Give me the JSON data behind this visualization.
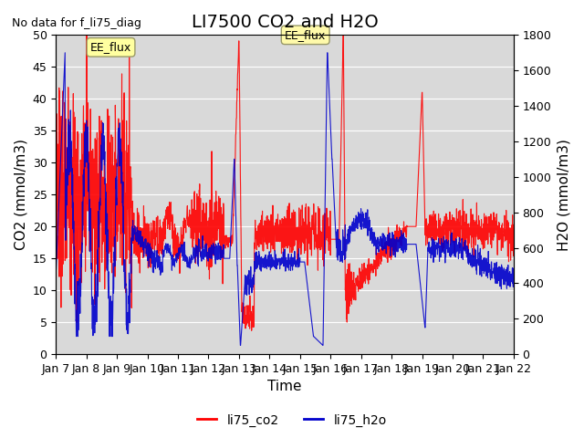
{
  "title": "LI7500 CO2 and H2O",
  "top_left_text": "No data for f_li75_diag",
  "xlabel": "Time",
  "ylabel_left": "CO2 (mmol/m3)",
  "ylabel_right": "H2O (mmol/m3)",
  "ylim_left": [
    0,
    50
  ],
  "ylim_right": [
    0,
    1800
  ],
  "yticks_left": [
    0,
    5,
    10,
    15,
    20,
    25,
    30,
    35,
    40,
    45,
    50
  ],
  "yticks_right": [
    0,
    200,
    400,
    600,
    800,
    1000,
    1200,
    1400,
    1600,
    1800
  ],
  "xtick_labels": [
    "Jan 7",
    "Jan 8",
    "Jan 9",
    "Jan 10",
    "Jan 11",
    "Jan 12",
    "Jan 13",
    "Jan 14",
    "Jan 15",
    "Jan 16",
    "Jan 17",
    "Jan 18",
    "Jan 19",
    "Jan 20",
    "Jan 21",
    "Jan 22"
  ],
  "annotation_text": "EE_flux",
  "co2_color": "#FF0000",
  "h2o_color": "#0000CC",
  "legend_co2": "li75_co2",
  "legend_h2o": "li75_h2o",
  "background_color": "#D9D9D9",
  "fig_background": "#FFFFFF",
  "grid_color": "#FFFFFF",
  "title_fontsize": 14,
  "axis_fontsize": 11,
  "tick_fontsize": 9
}
